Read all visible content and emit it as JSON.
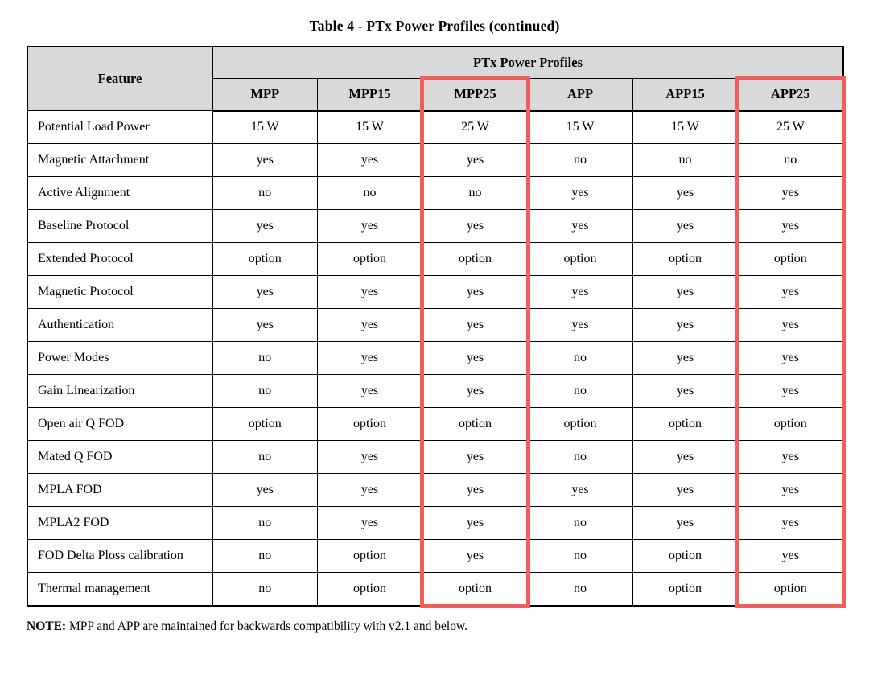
{
  "title": "Table 4 - PTx Power Profiles (continued)",
  "table": {
    "feature_header": "Feature",
    "group_header": "PTx Power Profiles",
    "columns": [
      "MPP",
      "MPP15",
      "MPP25",
      "APP",
      "APP15",
      "APP25"
    ],
    "highlighted_columns": [
      "MPP25",
      "APP25"
    ],
    "rows": [
      {
        "feature": "Potential Load Power",
        "values": [
          "15 W",
          "15 W",
          "25 W",
          "15 W",
          "15 W",
          "25 W"
        ]
      },
      {
        "feature": "Magnetic Attachment",
        "values": [
          "yes",
          "yes",
          "yes",
          "no",
          "no",
          "no"
        ]
      },
      {
        "feature": "Active Alignment",
        "values": [
          "no",
          "no",
          "no",
          "yes",
          "yes",
          "yes"
        ]
      },
      {
        "feature": "Baseline Protocol",
        "values": [
          "yes",
          "yes",
          "yes",
          "yes",
          "yes",
          "yes"
        ]
      },
      {
        "feature": "Extended Protocol",
        "values": [
          "option",
          "option",
          "option",
          "option",
          "option",
          "option"
        ]
      },
      {
        "feature": "Magnetic Protocol",
        "values": [
          "yes",
          "yes",
          "yes",
          "yes",
          "yes",
          "yes"
        ]
      },
      {
        "feature": "Authentication",
        "values": [
          "yes",
          "yes",
          "yes",
          "yes",
          "yes",
          "yes"
        ]
      },
      {
        "feature": "Power Modes",
        "values": [
          "no",
          "yes",
          "yes",
          "no",
          "yes",
          "yes"
        ]
      },
      {
        "feature": "Gain Linearization",
        "values": [
          "no",
          "yes",
          "yes",
          "no",
          "yes",
          "yes"
        ]
      },
      {
        "feature": "Open air Q FOD",
        "values": [
          "option",
          "option",
          "option",
          "option",
          "option",
          "option"
        ]
      },
      {
        "feature": "Mated Q FOD",
        "values": [
          "no",
          "yes",
          "yes",
          "no",
          "yes",
          "yes"
        ]
      },
      {
        "feature": "MPLA FOD",
        "values": [
          "yes",
          "yes",
          "yes",
          "yes",
          "yes",
          "yes"
        ]
      },
      {
        "feature": "MPLA2 FOD",
        "values": [
          "no",
          "yes",
          "yes",
          "no",
          "yes",
          "yes"
        ]
      },
      {
        "feature": "FOD Delta Ploss calibration",
        "values": [
          "no",
          "option",
          "yes",
          "no",
          "option",
          "yes"
        ]
      },
      {
        "feature": "Thermal management",
        "values": [
          "no",
          "option",
          "option",
          "no",
          "option",
          "option"
        ]
      }
    ]
  },
  "note": {
    "label": "NOTE:",
    "text": "MPP and APP are maintained for backwards compatibility with v2.1 and below."
  },
  "colors": {
    "highlight_border": "#f15e5c",
    "header_bg": "#d9d9d9"
  }
}
